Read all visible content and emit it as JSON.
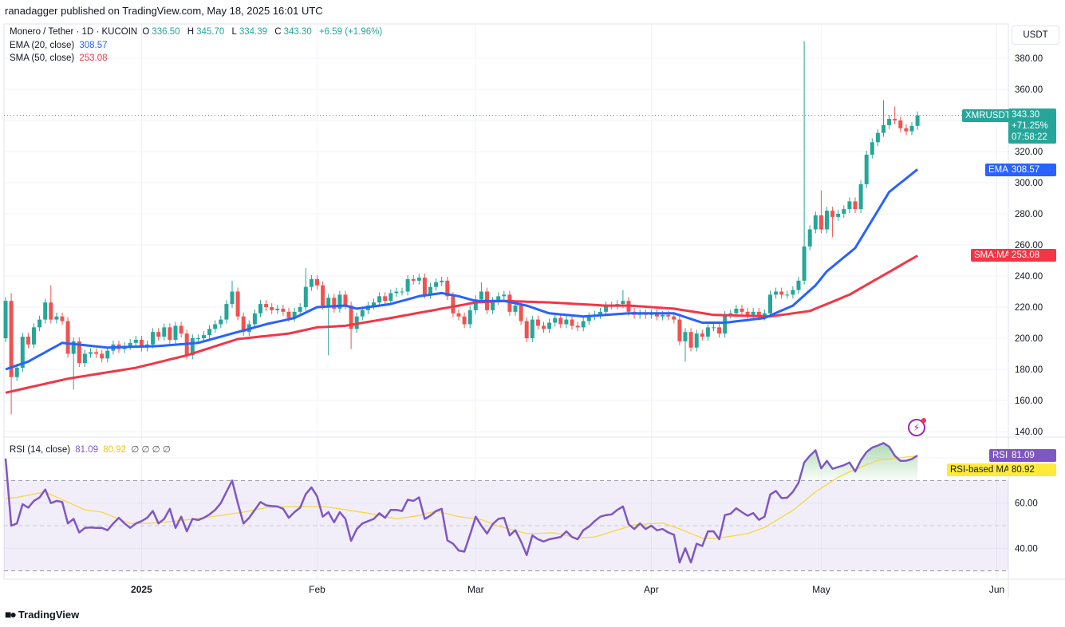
{
  "publisher_line": "ranadagger published on TradingView.com, May 18, 2025 16:01 UTC",
  "symbol_legend": {
    "title": "Monero / Tether · 1D · KUCOIN",
    "o_label": "O",
    "o": "336.50",
    "h_label": "H",
    "h": "345.70",
    "l_label": "L",
    "l": "334.39",
    "c_label": "C",
    "c": "343.30",
    "change": "+6.59 (+1.96%)"
  },
  "indicators": {
    "ema_label": "EMA (20, close)",
    "ema_value": "308.57",
    "sma_label": "SMA (50, close)",
    "sma_value": "253.08",
    "rsi_label": "RSI (14, close)",
    "rsi_value": "81.09",
    "rsi_ma_value": "80.92",
    "rsi_extra": "∅ ∅ ∅ ∅"
  },
  "price_axis": {
    "unit": "USDT"
  },
  "tags": {
    "symbol": "XMRUSDT",
    "price": "343.30",
    "pct": "+71.25%",
    "countdown": "07:58:22",
    "ema": "EMA",
    "ema_value": "308.57",
    "sma": "SMA:MA",
    "sma_value": "253.08",
    "rsi": "RSI",
    "rsi_value": "81.09",
    "rsi_ma": "RSI-based MA",
    "rsi_ma_value": "80.92"
  },
  "footer": {
    "brand": "TradingView",
    "logo": "TV"
  },
  "colors": {
    "up": "#26a69a",
    "down": "#ef5350",
    "ema": "#2962ff",
    "sma": "#f23645",
    "rsi": "#7e57c2",
    "rsi_ma": "#f5d742"
  },
  "chart_data": {
    "type": "candlestick",
    "symbol": "XMRUSDT",
    "interval": "1D",
    "start_date": "2024-12-08",
    "first_open": 200,
    "close": [
      224,
      175,
      181,
      201,
      196,
      207,
      212,
      223,
      212,
      214,
      211,
      190,
      198,
      184,
      190,
      191,
      190,
      187,
      192,
      196,
      193,
      195,
      197,
      199,
      194,
      196,
      204,
      201,
      207,
      199,
      208,
      203,
      189,
      200,
      200,
      202,
      206,
      209,
      212,
      222,
      230,
      214,
      204,
      209,
      216,
      222,
      220,
      218,
      219,
      217,
      213,
      217,
      220,
      233,
      238,
      234,
      221,
      226,
      219,
      228,
      221,
      206,
      214,
      218,
      221,
      223,
      227,
      224,
      229,
      230,
      230,
      238,
      237,
      239,
      228,
      233,
      236,
      237,
      227,
      216,
      214,
      209,
      218,
      225,
      230,
      218,
      224,
      227,
      228,
      217,
      221,
      211,
      200,
      212,
      208,
      206,
      210,
      213,
      209,
      212,
      208,
      207,
      211,
      214,
      215,
      217,
      221,
      221,
      222,
      224,
      217,
      215,
      216,
      215,
      216,
      214,
      215,
      214,
      212,
      198,
      204,
      194,
      203,
      201,
      207,
      207,
      203,
      215,
      216,
      219,
      217,
      215,
      217,
      214,
      216,
      228,
      230,
      228,
      228,
      231,
      237,
      259,
      270,
      279,
      270,
      282,
      278,
      280,
      283,
      288,
      283,
      299,
      318,
      326,
      332,
      337,
      341,
      340,
      335,
      333,
      336.5,
      343.3
    ],
    "wick_extremes": [
      {
        "i": 1,
        "high": 229,
        "low": 151
      },
      {
        "i": 8,
        "high": 234
      },
      {
        "i": 12,
        "low": 167
      },
      {
        "i": 40,
        "high": 237
      },
      {
        "i": 53,
        "high": 245
      },
      {
        "i": 57,
        "low": 189
      },
      {
        "i": 61,
        "low": 193
      },
      {
        "i": 84,
        "high": 236
      },
      {
        "i": 109,
        "high": 231
      },
      {
        "i": 120,
        "low": 185
      },
      {
        "i": 141,
        "high": 391
      },
      {
        "i": 144,
        "high": 295
      },
      {
        "i": 146,
        "low": 265
      },
      {
        "i": 155,
        "high": 353
      },
      {
        "i": 157,
        "high": 349
      }
    ],
    "ema20": [
      [
        0,
        180
      ],
      [
        4,
        185
      ],
      [
        10,
        197
      ],
      [
        18,
        194
      ],
      [
        27,
        195
      ],
      [
        34,
        197
      ],
      [
        39,
        202
      ],
      [
        46,
        209
      ],
      [
        51,
        213
      ],
      [
        55,
        220
      ],
      [
        60,
        221
      ],
      [
        62,
        219
      ],
      [
        68,
        222
      ],
      [
        73,
        227
      ],
      [
        77,
        229
      ],
      [
        80,
        227
      ],
      [
        83,
        224
      ],
      [
        88,
        224
      ],
      [
        92,
        221
      ],
      [
        96,
        216
      ],
      [
        102,
        214
      ],
      [
        110,
        216
      ],
      [
        118,
        216
      ],
      [
        123,
        210
      ],
      [
        127,
        210
      ],
      [
        134,
        213
      ],
      [
        139,
        221
      ],
      [
        143,
        234
      ],
      [
        145,
        243
      ],
      [
        150,
        258
      ],
      [
        156,
        294
      ],
      [
        161,
        308.57
      ]
    ],
    "sma50": [
      [
        0,
        165
      ],
      [
        11,
        174
      ],
      [
        23,
        181
      ],
      [
        32,
        189
      ],
      [
        41,
        199.5
      ],
      [
        50,
        203
      ],
      [
        55,
        207
      ],
      [
        60,
        208
      ],
      [
        68,
        213
      ],
      [
        77,
        219
      ],
      [
        83,
        223
      ],
      [
        88,
        224
      ],
      [
        96,
        223
      ],
      [
        106,
        221
      ],
      [
        110,
        221
      ],
      [
        118,
        219
      ],
      [
        125,
        215
      ],
      [
        135,
        214
      ],
      [
        142,
        217.5
      ],
      [
        149,
        228
      ],
      [
        161,
        253.08
      ]
    ],
    "rsi": [
      79.7,
      50,
      51,
      59.5,
      58,
      61,
      62.5,
      66,
      60,
      61,
      60.5,
      51,
      53,
      47,
      49,
      49.2,
      49,
      49,
      48,
      51,
      53.5,
      51,
      49,
      51,
      52,
      53.5,
      56.5,
      51,
      53,
      57.5,
      49,
      54,
      47.5,
      53,
      52.5,
      53.5,
      55,
      57,
      60,
      65,
      70,
      60,
      51,
      53.5,
      57,
      60.5,
      59,
      58.7,
      58.5,
      57.5,
      53.5,
      56,
      58,
      64,
      67,
      63,
      54,
      56,
      51.5,
      56,
      53,
      43.3,
      48.5,
      51,
      52,
      53,
      55.5,
      53.5,
      57,
      57,
      56.5,
      61.5,
      61,
      62.5,
      53,
      54.5,
      56.5,
      57.5,
      43.5,
      42,
      39,
      38.5,
      46,
      54,
      50,
      46.5,
      50.7,
      53,
      53.5,
      45.7,
      48,
      43,
      37,
      45.7,
      44,
      43,
      44,
      44.5,
      45,
      47.5,
      45,
      44,
      48,
      49.6,
      52,
      54,
      54.7,
      55,
      57,
      58.5,
      50.6,
      48.5,
      51,
      48.5,
      50,
      48,
      48.5,
      47,
      46,
      33.7,
      40,
      33.7,
      42,
      41,
      47.5,
      47.5,
      44,
      54.7,
      55.3,
      57.7,
      56,
      54.4,
      55.6,
      52.6,
      54,
      63.8,
      65.4,
      62.2,
      62.4,
      65,
      69,
      78,
      81,
      83.4,
      75.4,
      78.7,
      75.2,
      76,
      76.8,
      78,
      74,
      79,
      82.6,
      84.6,
      85.5,
      86.6,
      85,
      81,
      78.7,
      78.8,
      79.5,
      81.09
    ],
    "rsi_ma": [
      [
        0,
        62
      ],
      [
        2,
        62.5
      ],
      [
        7,
        65
      ],
      [
        10,
        61.5
      ],
      [
        14,
        57
      ],
      [
        17,
        56
      ],
      [
        22,
        51
      ],
      [
        25,
        51
      ],
      [
        30,
        52
      ],
      [
        35,
        53.5
      ],
      [
        42,
        56
      ],
      [
        46,
        58
      ],
      [
        51,
        58.5
      ],
      [
        56,
        58.5
      ],
      [
        59,
        57.5
      ],
      [
        64,
        55.5
      ],
      [
        69,
        53
      ],
      [
        73,
        54.5
      ],
      [
        76,
        56.5
      ],
      [
        80,
        54
      ],
      [
        84,
        52.7
      ],
      [
        87,
        49.8
      ],
      [
        92,
        46.5
      ],
      [
        97,
        46.8
      ],
      [
        101,
        44.5
      ],
      [
        104,
        45
      ],
      [
        111,
        50.4
      ],
      [
        116,
        51.2
      ],
      [
        119,
        48.6
      ],
      [
        123,
        44.5
      ],
      [
        126,
        44.5
      ],
      [
        131,
        46.5
      ],
      [
        134,
        49.2
      ],
      [
        139,
        56.8
      ],
      [
        143,
        65
      ],
      [
        147,
        71.5
      ],
      [
        150,
        75
      ],
      [
        154,
        79
      ],
      [
        161,
        80.92
      ]
    ],
    "rsi_levels": [
      70,
      50,
      30
    ],
    "ylim": [
      130,
      400
    ],
    "rsi_ylim": [
      25,
      95
    ],
    "price_ticks": [
      "380.00",
      "360.00",
      "320.00",
      "300.00",
      "280.00",
      "260.00",
      "240.00",
      "220.00",
      "200.00",
      "180.00",
      "160.00",
      "140.00"
    ],
    "rsi_ticks": [
      "60.00",
      "40.00"
    ],
    "time_ticks": [
      {
        "label": "2025",
        "i": 24,
        "bold": true
      },
      {
        "label": "Feb",
        "i": 55
      },
      {
        "label": "Mar",
        "i": 83
      },
      {
        "label": "Apr",
        "i": 114
      },
      {
        "label": "May",
        "i": 144
      },
      {
        "label": "Jun",
        "i": 175
      }
    ],
    "grid": true
  }
}
